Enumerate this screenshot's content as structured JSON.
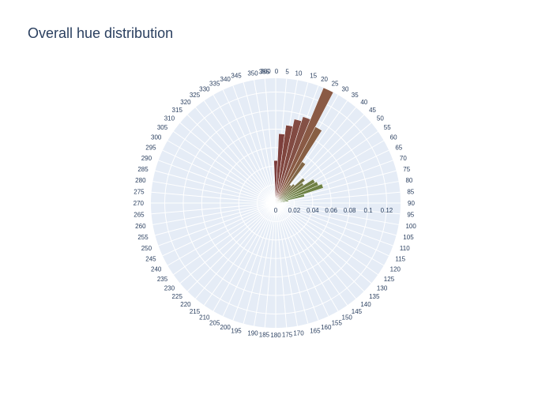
{
  "chart_data": {
    "type": "barpolar",
    "title": "Overall hue distribution",
    "angular_axis": {
      "unit": "degrees",
      "direction": "clockwise",
      "rotation_zero": "top",
      "tick_step": 5,
      "ticks": [
        0,
        5,
        10,
        15,
        20,
        25,
        30,
        35,
        40,
        45,
        50,
        55,
        60,
        65,
        70,
        75,
        80,
        85,
        90,
        95,
        100,
        105,
        110,
        115,
        120,
        125,
        130,
        135,
        140,
        145,
        150,
        155,
        160,
        165,
        170,
        175,
        180,
        185,
        190,
        195,
        200,
        205,
        210,
        215,
        220,
        225,
        230,
        235,
        240,
        245,
        250,
        255,
        260,
        265,
        270,
        275,
        280,
        285,
        290,
        295,
        300,
        305,
        310,
        315,
        320,
        325,
        330,
        335,
        340,
        345,
        350,
        355,
        360
      ]
    },
    "radial_axis": {
      "range": [
        0,
        0.135
      ],
      "ticks": [
        0,
        0.02,
        0.04,
        0.06,
        0.08,
        0.1,
        0.12
      ],
      "tick_labels": [
        "0",
        "0.02",
        "0.04",
        "0.06",
        "0.08",
        "0.1",
        "0.12"
      ],
      "angle_deg": 90
    },
    "bar_width_deg": 5,
    "bars": [
      {
        "theta": 0,
        "r": 0.046,
        "color": "#7a3a3a"
      },
      {
        "theta": 5,
        "r": 0.075,
        "color": "#7d3f3c"
      },
      {
        "theta": 10,
        "r": 0.085,
        "color": "#80453e"
      },
      {
        "theta": 15,
        "r": 0.093,
        "color": "#824a42"
      },
      {
        "theta": 20,
        "r": 0.098,
        "color": "#845045"
      },
      {
        "theta": 25,
        "r": 0.135,
        "color": "#8a5a45"
      },
      {
        "theta": 30,
        "r": 0.093,
        "color": "#875e43"
      },
      {
        "theta": 35,
        "r": 0.053,
        "color": "#826646"
      },
      {
        "theta": 40,
        "r": 0.025,
        "color": "#7e6c47"
      },
      {
        "theta": 45,
        "r": 0.028,
        "color": "#7a7047"
      },
      {
        "theta": 50,
        "r": 0.04,
        "color": "#777546"
      },
      {
        "theta": 55,
        "r": 0.036,
        "color": "#737a46"
      },
      {
        "theta": 60,
        "r": 0.048,
        "color": "#717e45"
      },
      {
        "theta": 65,
        "r": 0.05,
        "color": "#6f8045"
      },
      {
        "theta": 70,
        "r": 0.054,
        "color": "#6e8245"
      },
      {
        "theta": 75,
        "r": 0.032,
        "color": "#6b8547"
      },
      {
        "theta": 80,
        "r": 0.014,
        "color": "#6a8649"
      },
      {
        "theta": 85,
        "r": 0.006,
        "color": "#68874b"
      },
      {
        "theta": 90,
        "r": 0.003,
        "color": "#66884e"
      }
    ]
  }
}
